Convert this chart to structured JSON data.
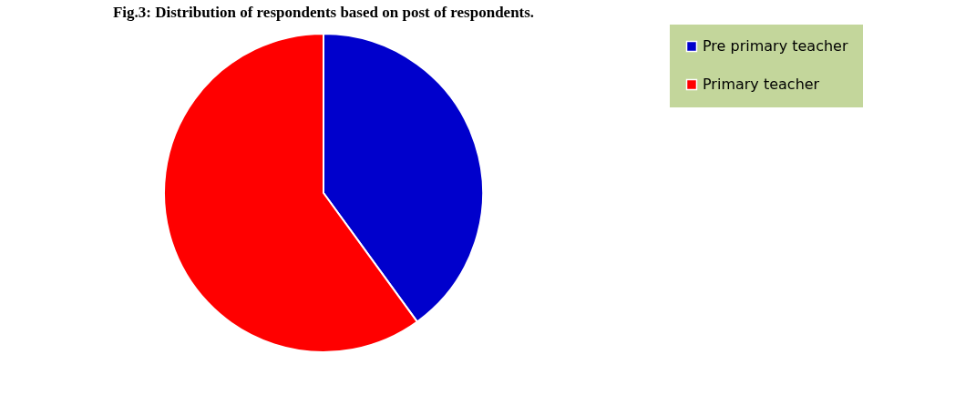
{
  "chart_data": {
    "type": "pie",
    "title": "Fig.3: Distribution of respondents based on post of respondents.",
    "categories": [
      "Pre primary teacher",
      "Primary teacher"
    ],
    "values": [
      40,
      60
    ],
    "colors": [
      "#0000cc",
      "#ff0000"
    ],
    "legend": "right"
  }
}
